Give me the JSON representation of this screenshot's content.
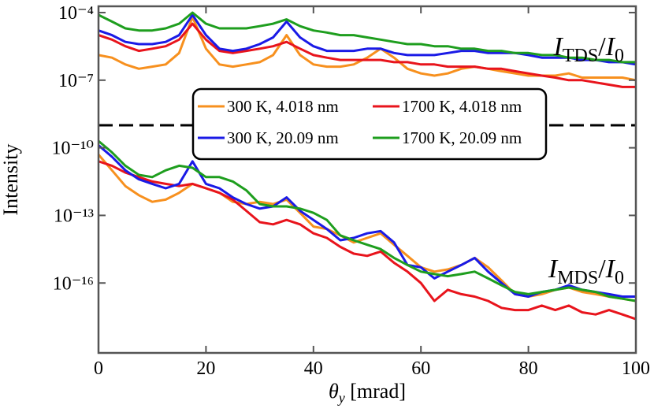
{
  "chart_data": {
    "type": "line",
    "x_label_parts": [
      "θ",
      "y",
      " [mrad]"
    ],
    "y_label": "Intensity",
    "annotations": [
      {
        "parts": [
          "I",
          "TDS",
          "/",
          "I",
          "0"
        ]
      },
      {
        "parts": [
          "I",
          "MDS",
          "/",
          "I",
          "0"
        ]
      }
    ],
    "x": [
      0,
      2.5,
      5,
      7.5,
      10,
      12.5,
      15,
      17.5,
      20,
      22.5,
      25,
      27.5,
      30,
      32.5,
      35,
      37.5,
      40,
      42.5,
      45,
      47.5,
      50,
      52.5,
      55,
      57.5,
      60,
      62.5,
      65,
      67.5,
      70,
      72.5,
      75,
      77.5,
      80,
      82.5,
      85,
      87.5,
      90,
      92.5,
      95,
      97.5,
      100
    ],
    "xlim": [
      0,
      100
    ],
    "xticks": [
      0,
      20,
      40,
      60,
      80,
      100
    ],
    "ylog": true,
    "ylim": [
      7.9e-20,
      0.00019
    ],
    "yticks": [
      {
        "value": 0.0001,
        "label": "10⁻⁴"
      },
      {
        "value": 1e-07,
        "label": "10⁻⁷"
      },
      {
        "value": 1e-10,
        "label": "10⁻¹⁰"
      },
      {
        "value": 1e-13,
        "label": "10⁻¹³"
      },
      {
        "value": 1e-16,
        "label": "10⁻¹⁶"
      }
    ],
    "reference_line": 1e-09,
    "legend": "center",
    "series": [
      {
        "name": "300 K, 4.018 nm",
        "color": "#f7901e",
        "tds": [
          1.3e-06,
          1e-06,
          5e-07,
          3.2e-07,
          4e-07,
          5e-07,
          1.6e-06,
          6.3e-05,
          2.5e-06,
          5e-07,
          4e-07,
          5e-07,
          6.3e-07,
          1.3e-06,
          1e-05,
          1.3e-06,
          5e-07,
          4e-07,
          4e-07,
          5e-07,
          1e-06,
          2.5e-06,
          1e-06,
          3.2e-07,
          2e-07,
          1.6e-07,
          2e-07,
          3.2e-07,
          4e-07,
          3.2e-07,
          2.5e-07,
          2e-07,
          1.6e-07,
          1.6e-07,
          1.6e-07,
          2e-07,
          1.3e-07,
          1.3e-07,
          1.3e-07,
          1.3e-07,
          1e-07
        ],
        "mds": [
          5e-11,
          1e-11,
          2e-12,
          7.9e-13,
          4e-13,
          5e-13,
          1e-12,
          2.5e-12,
          1.6e-12,
          1e-12,
          4e-13,
          3.2e-13,
          4e-13,
          3.2e-13,
          5e-13,
          1.3e-13,
          3.2e-14,
          2.5e-14,
          1.3e-14,
          6.3e-15,
          1e-14,
          1.6e-14,
          5e-15,
          1.6e-15,
          5e-16,
          3.2e-16,
          4e-16,
          6.3e-16,
          1.3e-15,
          5e-16,
          1.3e-16,
          3.2e-17,
          2.5e-17,
          3.2e-17,
          5e-17,
          6.3e-17,
          4e-17,
          3.2e-17,
          2.5e-17,
          2e-17,
          1.6e-17
        ]
      },
      {
        "name": "1700 K, 4.018 nm",
        "color": "#e8141c",
        "tds": [
          1e-05,
          6.3e-06,
          3.2e-06,
          2e-06,
          2.5e-06,
          3.2e-06,
          6.3e-06,
          3.2e-05,
          6.3e-06,
          2e-06,
          1.6e-06,
          2e-06,
          2.5e-06,
          3.2e-06,
          5e-06,
          2.5e-06,
          1.3e-06,
          1e-06,
          7.9e-07,
          7.9e-07,
          7.9e-07,
          7.9e-07,
          6.3e-07,
          6.3e-07,
          5e-07,
          5e-07,
          4e-07,
          4e-07,
          4e-07,
          3.2e-07,
          3.2e-07,
          2.5e-07,
          2e-07,
          1.6e-07,
          1.3e-07,
          1e-07,
          1e-07,
          7.9e-08,
          6.3e-08,
          5e-08,
          5e-08
        ],
        "mds": [
          2.5e-11,
          1.6e-11,
          7.9e-12,
          5e-12,
          3.2e-12,
          2.5e-12,
          2e-12,
          2.5e-12,
          1.6e-12,
          1e-12,
          5e-13,
          1.6e-13,
          5e-14,
          4e-14,
          6.3e-14,
          4e-14,
          1.6e-14,
          1e-14,
          4e-15,
          2e-15,
          1.6e-15,
          2.5e-15,
          7.9e-16,
          3.2e-16,
          1e-16,
          1.6e-17,
          5e-17,
          3.2e-17,
          2.5e-17,
          1.6e-17,
          7.9e-18,
          6.3e-18,
          6.3e-18,
          1e-17,
          6.3e-18,
          1e-17,
          5e-18,
          4e-18,
          6.3e-18,
          4e-18,
          2.5e-18
        ]
      },
      {
        "name": "300 K, 20.09 nm",
        "color": "#1a1ae6",
        "tds": [
          1.6e-05,
          1e-05,
          5e-06,
          4e-06,
          4e-06,
          5e-06,
          1e-05,
          7.9e-05,
          1e-05,
          2.5e-06,
          2e-06,
          2.5e-06,
          4e-06,
          7.9e-06,
          4e-05,
          7.9e-06,
          3.2e-06,
          2e-06,
          2e-06,
          2e-06,
          2.5e-06,
          2.5e-06,
          1.6e-06,
          1.3e-06,
          1.3e-06,
          1.3e-06,
          1.6e-06,
          2e-06,
          2e-06,
          1.6e-06,
          1.6e-06,
          1.6e-06,
          1.3e-06,
          1e-06,
          1e-06,
          1e-06,
          7.9e-07,
          7.9e-07,
          6.3e-07,
          6.3e-07,
          5e-07
        ],
        "mds": [
          1.3e-10,
          4e-11,
          1e-11,
          4e-12,
          2.5e-12,
          1.6e-12,
          2.5e-12,
          2.5e-11,
          2.5e-12,
          1.6e-12,
          6.3e-13,
          3.2e-13,
          2e-13,
          2.5e-13,
          6.3e-13,
          1.6e-13,
          6.3e-14,
          2.5e-14,
          7.9e-15,
          1e-14,
          1.6e-14,
          2e-14,
          6.3e-15,
          6.3e-16,
          5e-16,
          1.6e-16,
          3.2e-16,
          6.3e-16,
          1.3e-15,
          3.2e-16,
          1e-16,
          3.2e-17,
          2.5e-17,
          4e-17,
          5e-17,
          7.9e-17,
          5e-17,
          4e-17,
          3.2e-17,
          2.5e-17,
          2.5e-17
        ]
      },
      {
        "name": "1700 K, 20.09 nm",
        "color": "#1e9e1e",
        "tds": [
          7.9e-05,
          4e-05,
          2e-05,
          1.6e-05,
          1.6e-05,
          2e-05,
          3.2e-05,
          0.0001,
          3.2e-05,
          2e-05,
          2e-05,
          2e-05,
          2.5e-05,
          3.2e-05,
          5e-05,
          2.5e-05,
          1.6e-05,
          1.3e-05,
          1e-05,
          1e-05,
          7.9e-06,
          6.3e-06,
          5e-06,
          4e-06,
          4e-06,
          3.2e-06,
          3.2e-06,
          2.5e-06,
          2.5e-06,
          2e-06,
          2e-06,
          1.6e-06,
          1.6e-06,
          1.3e-06,
          1.3e-06,
          1e-06,
          1e-06,
          7.9e-07,
          7.9e-07,
          6.3e-07,
          6.3e-07
        ],
        "mds": [
          2e-10,
          6.3e-11,
          1.6e-11,
          6.3e-12,
          5e-12,
          1e-11,
          1.6e-11,
          1.3e-11,
          5e-12,
          5e-12,
          3.2e-12,
          1.3e-12,
          3.2e-13,
          2.5e-13,
          2.5e-13,
          2e-13,
          1.3e-13,
          6.3e-14,
          1.3e-14,
          7.9e-15,
          5e-15,
          3.2e-15,
          1.3e-15,
          6.3e-16,
          3.2e-16,
          2.5e-16,
          2e-16,
          2.5e-16,
          3.2e-16,
          1.6e-16,
          7.9e-17,
          4e-17,
          3.2e-17,
          4e-17,
          5e-17,
          6.3e-17,
          5e-17,
          4e-17,
          2.5e-17,
          2e-17,
          1.6e-17
        ]
      }
    ]
  }
}
